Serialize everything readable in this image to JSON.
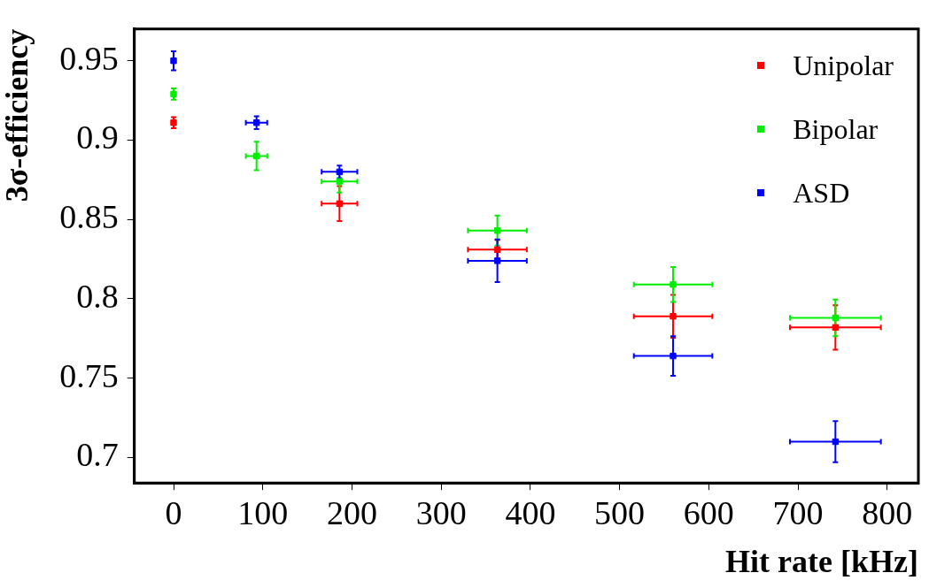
{
  "chart_data": {
    "type": "scatter",
    "xlabel": "Hit rate [kHz]",
    "ylabel": "3σ-efficiency",
    "x": [
      0,
      93,
      186,
      363,
      560,
      742
    ],
    "xlim": [
      -44,
      835
    ],
    "xticks": [
      0,
      100,
      200,
      300,
      400,
      500,
      600,
      700,
      800
    ],
    "ylim": [
      0.684,
      0.97
    ],
    "yticks": [
      0.7,
      0.75,
      0.8,
      0.85,
      0.9,
      0.95
    ],
    "grid": false,
    "legend": "top right",
    "marker": "square",
    "series": [
      {
        "name": "Unipolar",
        "color": "#ff0000",
        "values": [
          0.911,
          null,
          0.86,
          0.831,
          0.789,
          0.782
        ],
        "errors": [
          0.0035,
          null,
          0.011,
          0.006,
          0.0135,
          0.014
        ],
        "xerrors": [
          null,
          null,
          20,
          33,
          44,
          51
        ]
      },
      {
        "name": "Bipolar",
        "color": "#00ee00",
        "values": [
          0.929,
          0.89,
          0.874,
          0.843,
          0.809,
          0.788
        ],
        "errors": [
          0.0035,
          0.009,
          0.007,
          0.0095,
          0.011,
          0.0115
        ],
        "xerrors": [
          null,
          12,
          20,
          33,
          44,
          51
        ]
      },
      {
        "name": "ASD",
        "color": "#0000ff",
        "values": [
          0.95,
          0.911,
          0.88,
          0.824,
          0.764,
          0.71
        ],
        "errors": [
          0.006,
          0.004,
          0.004,
          0.0135,
          0.0125,
          0.013
        ],
        "xerrors": [
          null,
          12,
          20,
          33,
          44,
          51
        ]
      }
    ]
  }
}
